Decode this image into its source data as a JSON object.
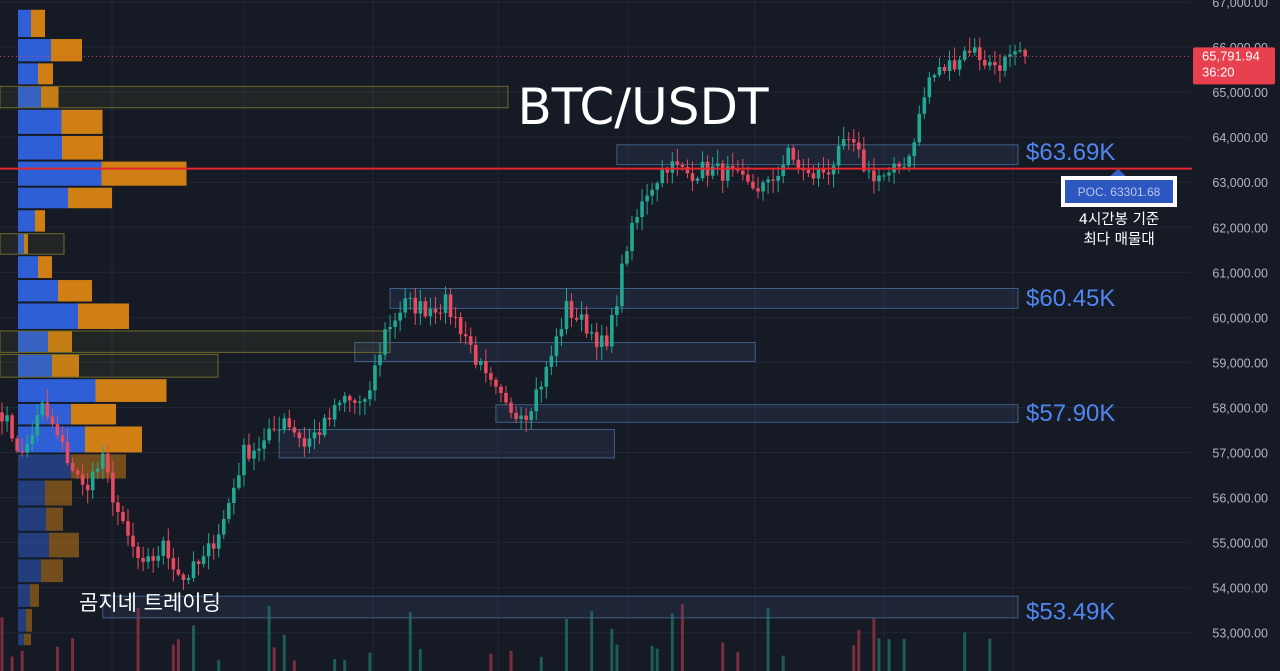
{
  "chart_data": {
    "type": "candlestick",
    "title": "BTC/USDT",
    "watermark": "곰지네 트레이딩",
    "ylim": [
      52700,
      67000
    ],
    "y_ticks": [
      {
        "v": 67000,
        "label": "67,000.00"
      },
      {
        "v": 66000,
        "label": "66,000.00"
      },
      {
        "v": 65000,
        "label": "65,000.00"
      },
      {
        "v": 64000,
        "label": "64,000.00"
      },
      {
        "v": 63000,
        "label": "63,000.00"
      },
      {
        "v": 62000,
        "label": "62,000.00"
      },
      {
        "v": 61000,
        "label": "61,000.00"
      },
      {
        "v": 60000,
        "label": "60,000.00"
      },
      {
        "v": 59000,
        "label": "59,000.00"
      },
      {
        "v": 58000,
        "label": "58,000.00"
      },
      {
        "v": 57000,
        "label": "57,000.00"
      },
      {
        "v": 56000,
        "label": "56,000.00"
      },
      {
        "v": 55000,
        "label": "55,000.00"
      },
      {
        "v": 54000,
        "label": "54,000.00"
      },
      {
        "v": 53000,
        "label": "53,000.00"
      }
    ],
    "current_price": {
      "value": 65791.94,
      "label": "65,791.94",
      "countdown": "36:20"
    },
    "poc": {
      "value": 63301.68,
      "label": "POC. 63301.68",
      "note_line1": "4시간봉 기준",
      "note_line2": "최다 매물대"
    },
    "key_levels": [
      {
        "label": "$63.69K",
        "value": 63690
      },
      {
        "label": "$60.45K",
        "value": 60450
      },
      {
        "label": "$57.90K",
        "value": 57900
      },
      {
        "label": "$53.49K",
        "value": 53490
      }
    ],
    "zones": [
      {
        "bottom": 63390,
        "top": 63830,
        "from_index": 122,
        "to_index": 0
      },
      {
        "bottom": 60200,
        "top": 60640,
        "from_index": 77,
        "to_index": 0
      },
      {
        "bottom": 59020,
        "top": 59440,
        "from_index": 70,
        "to_index": 0,
        "end_frac": 0.59
      },
      {
        "bottom": 57670,
        "top": 58060,
        "from_index": 98,
        "to_index": 0
      },
      {
        "bottom": 56880,
        "top": 57510,
        "from_index": 55,
        "to_index": 0,
        "end_frac": 0.48
      },
      {
        "bottom": 53330,
        "top": 53810,
        "from_index": 20,
        "to_index": 0
      }
    ],
    "volume_profile": {
      "colors": {
        "buy": "#2f5fd6",
        "sell": "#d07f14"
      },
      "rows": [
        {
          "bottom": 66200,
          "top": 66850,
          "buy": 26,
          "sell": 28
        },
        {
          "bottom": 65660,
          "top": 66200,
          "buy": 66,
          "sell": 62
        },
        {
          "bottom": 65150,
          "top": 65660,
          "buy": 40,
          "sell": 30
        },
        {
          "bottom": 64630,
          "top": 65150,
          "buy": 46,
          "sell": 35
        },
        {
          "bottom": 64050,
          "top": 64630,
          "buy": 87,
          "sell": 82
        },
        {
          "bottom": 63480,
          "top": 64050,
          "buy": 88,
          "sell": 82
        },
        {
          "bottom": 62900,
          "top": 63480,
          "buy": 167,
          "sell": 170
        },
        {
          "bottom": 62400,
          "top": 62900,
          "buy": 100,
          "sell": 88
        },
        {
          "bottom": 61880,
          "top": 62400,
          "buy": 34,
          "sell": 20
        },
        {
          "bottom": 61380,
          "top": 61880,
          "buy": 12,
          "sell": 8
        },
        {
          "bottom": 60850,
          "top": 61380,
          "buy": 40,
          "sell": 28
        },
        {
          "bottom": 60330,
          "top": 60850,
          "buy": 80,
          "sell": 68
        },
        {
          "bottom": 59720,
          "top": 60330,
          "buy": 120,
          "sell": 102
        },
        {
          "bottom": 59200,
          "top": 59720,
          "buy": 60,
          "sell": 48
        },
        {
          "bottom": 58650,
          "top": 59200,
          "buy": 68,
          "sell": 54
        },
        {
          "bottom": 58100,
          "top": 58650,
          "buy": 155,
          "sell": 142
        },
        {
          "bottom": 57600,
          "top": 58100,
          "buy": 106,
          "sell": 90
        },
        {
          "bottom": 56980,
          "top": 57600,
          "buy": 134,
          "sell": 114
        },
        {
          "bottom": 56400,
          "top": 56980,
          "buy": 106,
          "sell": 110
        },
        {
          "bottom": 55800,
          "top": 56400,
          "buy": 54,
          "sell": 54
        },
        {
          "bottom": 55240,
          "top": 55800,
          "buy": 56,
          "sell": 34
        },
        {
          "bottom": 54650,
          "top": 55240,
          "buy": 62,
          "sell": 60
        },
        {
          "bottom": 54100,
          "top": 54650,
          "buy": 46,
          "sell": 44
        },
        {
          "bottom": 53550,
          "top": 54100,
          "buy": 24,
          "sell": 18
        },
        {
          "bottom": 53000,
          "top": 53550,
          "buy": 16,
          "sell": 12
        },
        {
          "bottom": 52700,
          "top": 53000,
          "buy": 12,
          "sell": 14
        }
      ]
    },
    "candles_anchor": [
      [
        0,
        57900
      ],
      [
        4,
        56900
      ],
      [
        8,
        58000
      ],
      [
        12,
        57100
      ],
      [
        16,
        56200
      ],
      [
        20,
        56800
      ],
      [
        24,
        55300
      ],
      [
        28,
        54400
      ],
      [
        32,
        54900
      ],
      [
        36,
        54200
      ],
      [
        40,
        54600
      ],
      [
        44,
        55500
      ],
      [
        48,
        57000
      ],
      [
        52,
        57200
      ],
      [
        56,
        57800
      ],
      [
        60,
        57200
      ],
      [
        64,
        57600
      ],
      [
        68,
        58200
      ],
      [
        72,
        58000
      ],
      [
        76,
        59700
      ],
      [
        80,
        60300
      ],
      [
        84,
        60200
      ],
      [
        88,
        60300
      ],
      [
        92,
        59600
      ],
      [
        96,
        58600
      ],
      [
        100,
        58000
      ],
      [
        104,
        57900
      ],
      [
        108,
        58800
      ],
      [
        112,
        60200
      ],
      [
        116,
        59800
      ],
      [
        120,
        59300
      ],
      [
        124,
        61600
      ],
      [
        128,
        62800
      ],
      [
        132,
        63400
      ],
      [
        136,
        63200
      ],
      [
        140,
        63300
      ],
      [
        144,
        63200
      ],
      [
        148,
        62900
      ],
      [
        152,
        62900
      ],
      [
        156,
        63600
      ],
      [
        160,
        63100
      ],
      [
        164,
        63300
      ],
      [
        168,
        63900
      ],
      [
        172,
        63200
      ],
      [
        176,
        63100
      ],
      [
        180,
        63600
      ],
      [
        184,
        65300
      ],
      [
        188,
        65600
      ],
      [
        192,
        66000
      ],
      [
        196,
        65600
      ],
      [
        200,
        65700
      ],
      [
        203,
        65792
      ]
    ],
    "candles_seed": 7
  }
}
